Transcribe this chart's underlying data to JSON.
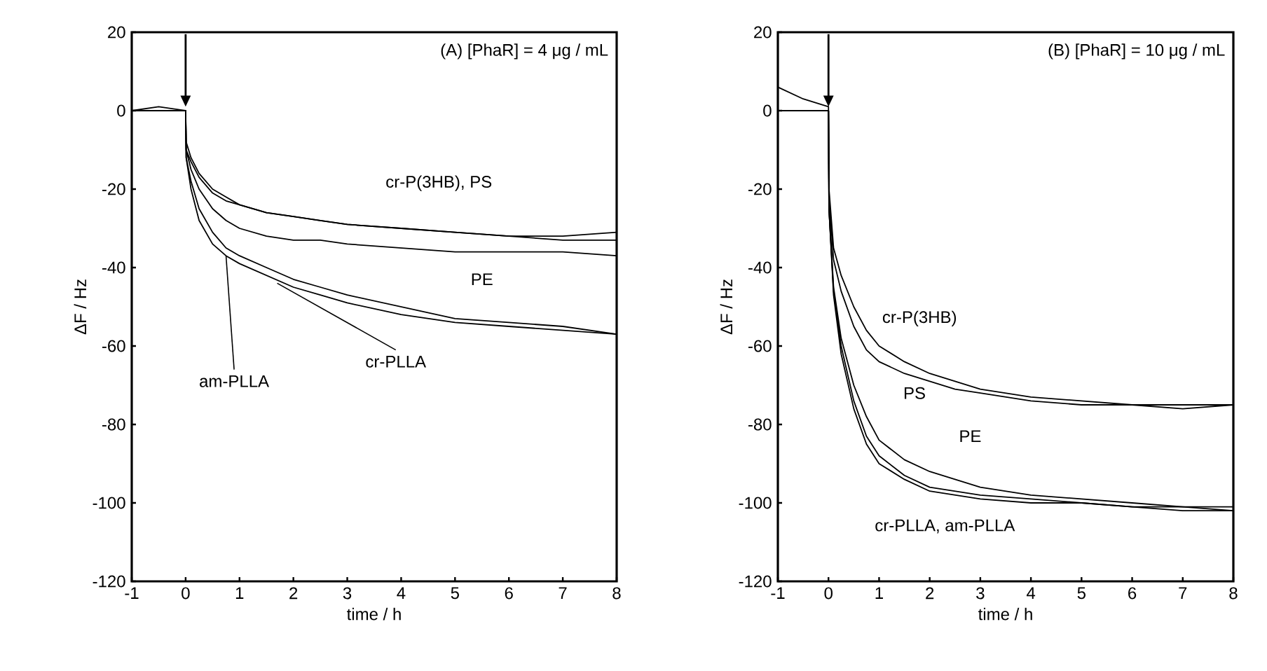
{
  "chart_data": [
    {
      "type": "line",
      "title": "(A) [PhaR] = 4 μg / mL",
      "xlabel": "time / h",
      "ylabel": "ΔF / Hz",
      "x": [
        -1,
        -0.5,
        0,
        0.01,
        0.1,
        0.25,
        0.5,
        0.75,
        1,
        1.5,
        2,
        2.5,
        3,
        4,
        5,
        6,
        7,
        8
      ],
      "series": [
        {
          "color": "#000000",
          "values": [
            0,
            1,
            0,
            -8,
            -12,
            -16,
            -20,
            -22,
            -24,
            -26,
            -27,
            -28,
            -29,
            -30,
            -31,
            -32,
            -32,
            -31
          ]
        },
        {
          "color": "#000000",
          "values": [
            0,
            0,
            0,
            -10,
            -13,
            -17,
            -21,
            -23,
            -24,
            -26,
            -27,
            -28,
            -29,
            -30,
            -31,
            -32,
            -33,
            -33
          ]
        },
        {
          "color": "#000000",
          "values": [
            0,
            0,
            0,
            -10,
            -15,
            -20,
            -25,
            -28,
            -30,
            -32,
            -33,
            -33,
            -34,
            -35,
            -36,
            -36,
            -36,
            -37
          ]
        },
        {
          "color": "#000000",
          "values": [
            0,
            0,
            0,
            -12,
            -18,
            -25,
            -31,
            -35,
            -37,
            -40,
            -43,
            -45,
            -47,
            -50,
            -53,
            -54,
            -55,
            -57
          ]
        },
        {
          "color": "#000000",
          "values": [
            0,
            0,
            0,
            -12,
            -20,
            -28,
            -34,
            -37,
            -39,
            -42,
            -45,
            -47,
            -49,
            -52,
            -54,
            -55,
            -56,
            -57
          ]
        }
      ],
      "xlim": [
        -1,
        8
      ],
      "ylim": [
        -120,
        20
      ],
      "xticks": [
        -1,
        0,
        1,
        2,
        3,
        4,
        5,
        6,
        7,
        8
      ],
      "yticks": [
        -120,
        -100,
        -80,
        -60,
        -40,
        -20,
        0,
        20
      ],
      "annotations": [
        "cr-P(3HB), PS",
        "PE",
        {
          "text": "cr-PLLA",
          "x": 1.7,
          "y": -44
        },
        {
          "text": "am-PLLA",
          "x": 0.75,
          "y": -37
        }
      ]
    },
    {
      "type": "line",
      "title": "(B) [PhaR] = 10 μg / mL",
      "xlabel": "time / h",
      "ylabel": "ΔF / Hz",
      "x": [
        -1,
        -0.5,
        0,
        0.01,
        0.1,
        0.25,
        0.5,
        0.75,
        1,
        1.5,
        2,
        2.5,
        3,
        4,
        5,
        6,
        7,
        8
      ],
      "series": [
        {
          "color": "#000000",
          "values": [
            6,
            3,
            1,
            -20,
            -35,
            -42,
            -50,
            -56,
            -60,
            -64,
            -67,
            -69,
            -71,
            -73,
            -74,
            -75,
            -75,
            -75
          ]
        },
        {
          "color": "#000000",
          "values": [
            0,
            0,
            0,
            -22,
            -38,
            -46,
            -55,
            -61,
            -64,
            -67,
            -69,
            -71,
            -72,
            -74,
            -75,
            -75,
            -76,
            -75
          ]
        },
        {
          "color": "#000000",
          "values": [
            0,
            0,
            0,
            -25,
            -45,
            -58,
            -70,
            -78,
            -84,
            -89,
            -92,
            -94,
            -96,
            -98,
            -99,
            -100,
            -101,
            -101
          ]
        },
        {
          "color": "#000000",
          "values": [
            0,
            0,
            0,
            -25,
            -46,
            -60,
            -74,
            -83,
            -88,
            -93,
            -96,
            -97,
            -98,
            -99,
            -100,
            -101,
            -101,
            -102
          ]
        },
        {
          "color": "#000000",
          "values": [
            0,
            0,
            0,
            -25,
            -47,
            -62,
            -76,
            -85,
            -90,
            -94,
            -97,
            -98,
            -99,
            -100,
            -100,
            -101,
            -102,
            -102
          ]
        }
      ],
      "xlim": [
        -1,
        8
      ],
      "ylim": [
        -120,
        20
      ],
      "xticks": [
        -1,
        0,
        1,
        2,
        3,
        4,
        5,
        6,
        7,
        8
      ],
      "yticks": [
        -120,
        -100,
        -80,
        -60,
        -40,
        -20,
        0,
        20
      ],
      "annotations": [
        "cr-P(3HB)",
        "PS",
        "PE",
        "cr-PLLA, am-PLLA"
      ]
    }
  ]
}
